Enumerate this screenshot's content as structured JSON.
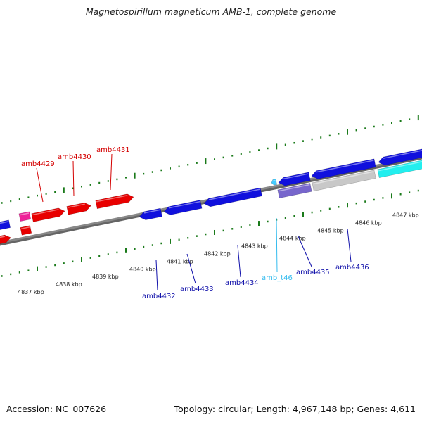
{
  "header": {
    "title": "Magnetospirillum magneticum AMB-1, complete genome"
  },
  "footer": {
    "accession": "Accession: NC_007626",
    "topology": "Topology: circular; Length: 4,967,148 bp; Genes: 4,611"
  },
  "colors": {
    "forward_gene": "#e80000",
    "reverse_gene": "#1010dd",
    "trna": "#44ccff",
    "light_cyan": "#22eeee",
    "pseudo": "#7766cc",
    "grey_feature": "#c8c8c8",
    "pink": "#ee2299",
    "tick": "#1a7a1a",
    "axis": "#888888"
  },
  "ticks": [
    {
      "label": "4837 kbp"
    },
    {
      "label": "4838 kbp"
    },
    {
      "label": "4839 kbp"
    },
    {
      "label": "4840 kbp"
    },
    {
      "label": "4841 kbp"
    },
    {
      "label": "4842 kbp"
    },
    {
      "label": "4843 kbp"
    },
    {
      "label": "4844 kbp"
    },
    {
      "label": "4845 kbp"
    },
    {
      "label": "4846 kbp"
    },
    {
      "label": "4847 kbp"
    }
  ],
  "gene_labels": [
    {
      "name": "amb4429",
      "strand": "forward"
    },
    {
      "name": "amb4430",
      "strand": "forward"
    },
    {
      "name": "amb4431",
      "strand": "forward"
    },
    {
      "name": "amb4432",
      "strand": "reverse"
    },
    {
      "name": "amb4433",
      "strand": "reverse"
    },
    {
      "name": "amb4434",
      "strand": "reverse"
    },
    {
      "name": "amb_t46",
      "strand": "trna"
    },
    {
      "name": "amb4435",
      "strand": "reverse"
    },
    {
      "name": "amb4436",
      "strand": "reverse"
    }
  ]
}
